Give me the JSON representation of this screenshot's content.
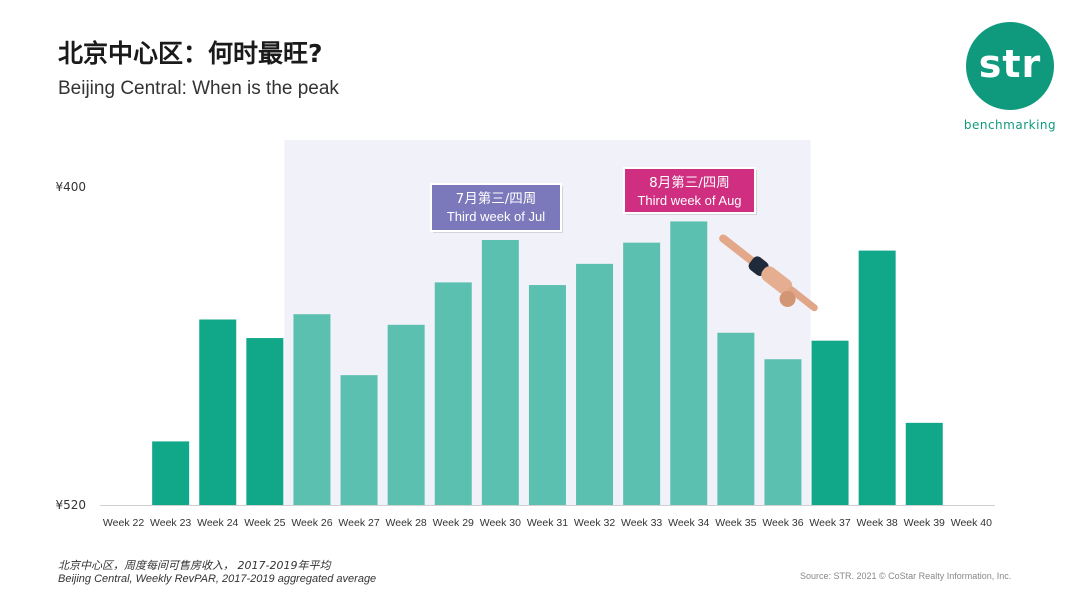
{
  "header": {
    "title": "北京中心区：何时最旺?",
    "subtitle": "Beijing Central: When is the peak"
  },
  "logo": {
    "wordmark": "str",
    "tagline": "benchmarking",
    "color": "#0f9a7d"
  },
  "chart_data": {
    "type": "bar",
    "title": "北京中心区：何时最旺?",
    "subtitle": "Beijing Central: When is the peak",
    "categories": [
      "Week 22",
      "Week 23",
      "Week 24",
      "Week 25",
      "Week 26",
      "Week 27",
      "Week 28",
      "Week 29",
      "Week 30",
      "Week 31",
      "Week 32",
      "Week 33",
      "Week 34",
      "Week 35",
      "Week 36",
      "Week 37",
      "Week 38",
      "Week 39",
      "Week 40"
    ],
    "values": [
      null,
      424,
      470,
      463,
      472,
      449,
      468,
      484,
      500,
      483,
      491,
      499,
      507,
      465,
      455,
      462,
      496,
      431,
      null
    ],
    "highlighted_weeks": [
      "Week 26",
      "Week 27",
      "Week 28",
      "Week 29",
      "Week 30",
      "Week 31",
      "Week 32",
      "Week 33",
      "Week 34",
      "Week 35",
      "Week 36"
    ],
    "ylim": [
      400,
      520
    ],
    "yticks": [
      "¥400",
      "¥520"
    ],
    "xlabel": "",
    "ylabel": "",
    "grid": false,
    "colors": {
      "base_bar": "#10a888",
      "highlight_bar": "#5cc0b0",
      "highlight_band": "#f1f1f9",
      "axis": "#d0d0d0"
    },
    "annotations": [
      {
        "week": "Week 30",
        "line1": "7月第三/四周",
        "line2": "Third week of Jul",
        "color": "#7b78bb"
      },
      {
        "week": "Week 34",
        "line1": "8月第三/四周",
        "line2": "Third week of Aug",
        "color": "#cf2e81"
      }
    ]
  },
  "footer": {
    "note_cn": "北京中心区，周度每间可售房收入，  2017-2019年平均",
    "note_en": "Beijing Central, Weekly RevPAR, 2017-2019  aggregated average",
    "source": "Source: STR. 2021 © CoStar Realty Information, Inc."
  }
}
